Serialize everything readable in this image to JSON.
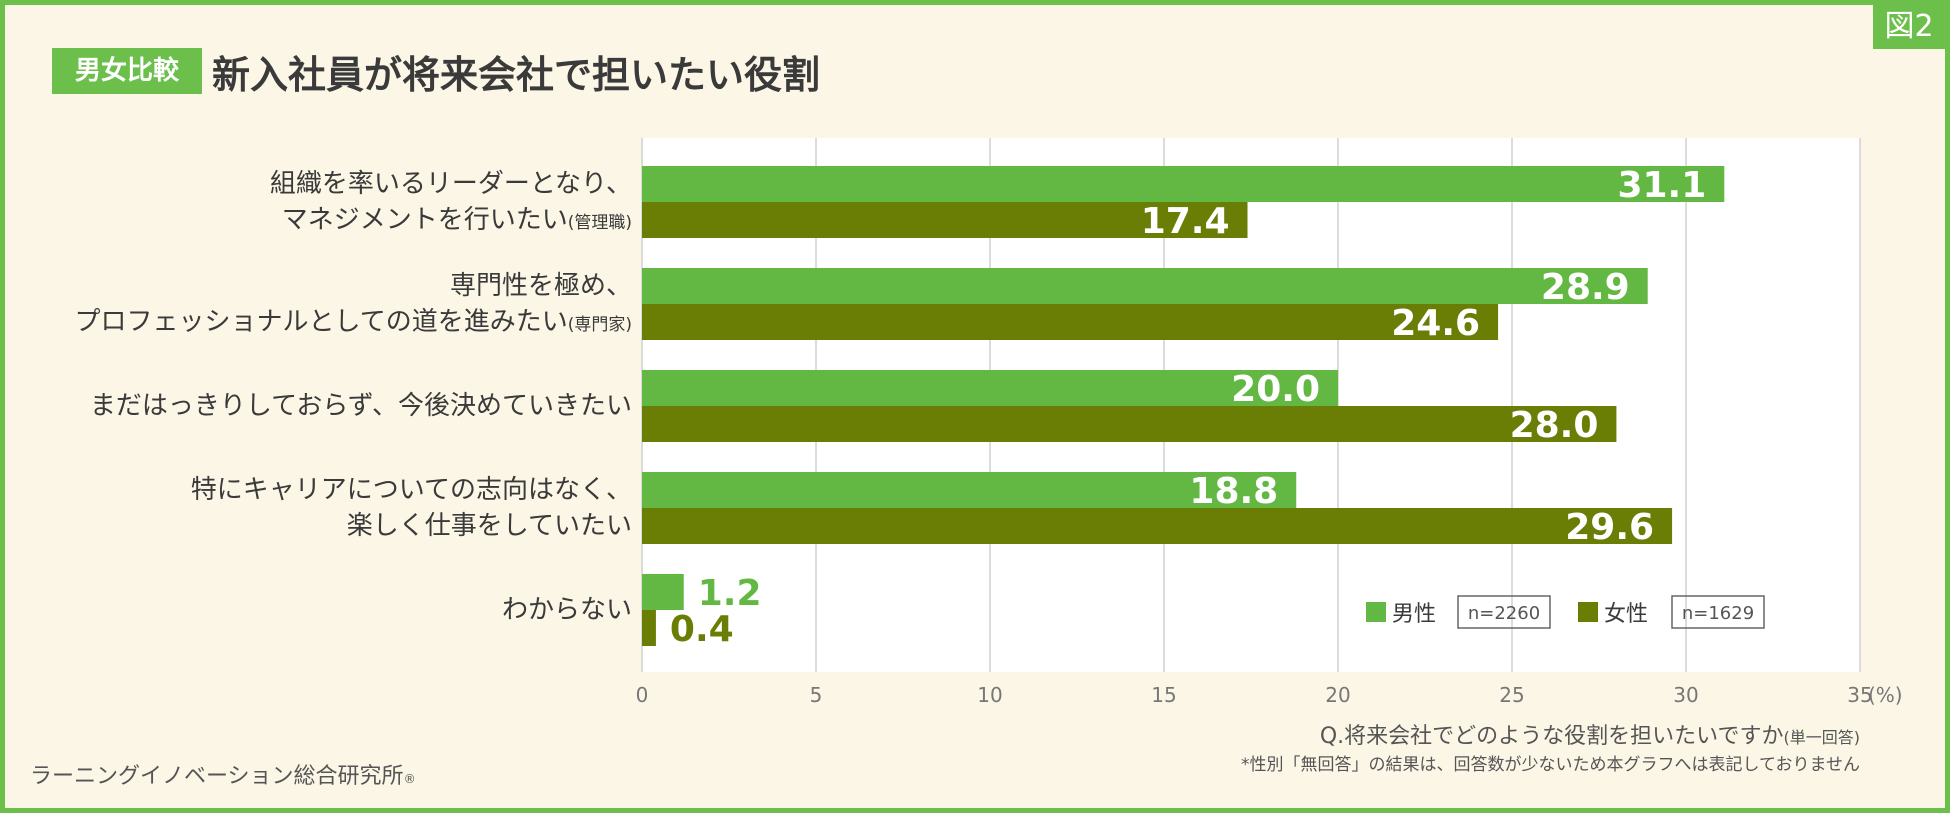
{
  "figure_tag": "図2",
  "title_badge": "男女比較",
  "title": "新入社員が将来会社で担いたい役割",
  "question": "Q.将来会社でどのような役割を担いたいですか",
  "question_note": "(単一回答)",
  "footnote": "*性別「無回答」の結果は、回答数が少ないため本グラフへは表記しておりません",
  "credit": "ラーニングイノベーション総合研究所",
  "credit_mark": "®",
  "categories": [
    {
      "line1": "組織を率いるリーダーとなり、",
      "line2": "マネジメントを行いたい",
      "suffix": "(管理職)"
    },
    {
      "line1": "専門性を極め、",
      "line2": "プロフェッショナルとしての道を進みたい",
      "suffix": "(専門家)"
    },
    {
      "line1": "まだはっきりしておらず、今後決めていきたい",
      "line2": "",
      "suffix": ""
    },
    {
      "line1": "特にキャリアについての志向はなく、",
      "line2": "楽しく仕事をしていたい",
      "suffix": ""
    },
    {
      "line1": "わからない",
      "line2": "",
      "suffix": ""
    }
  ],
  "colors": {
    "male": "#62b843",
    "female": "#6a7d05",
    "grid": "#d0d0d0",
    "axis_text": "#777777"
  },
  "chart_data": {
    "type": "bar",
    "orientation": "horizontal",
    "categories": [
      "組織を率いるリーダーとなり、マネジメントを行いたい(管理職)",
      "専門性を極め、プロフェッショナルとしての道を進みたい(専門家)",
      "まだはっきりしておらず、今後決めていきたい",
      "特にキャリアについての志向はなく、楽しく仕事をしていたい",
      "わからない"
    ],
    "series": [
      {
        "name": "男性",
        "n_label": "n=2260",
        "values": [
          31.1,
          28.9,
          20.0,
          18.8,
          1.2
        ]
      },
      {
        "name": "女性",
        "n_label": "n=1629",
        "values": [
          17.4,
          24.6,
          28.0,
          29.6,
          0.4
        ]
      }
    ],
    "xlim": [
      0,
      35
    ],
    "xticks": [
      0,
      5,
      10,
      15,
      20,
      25,
      30,
      35
    ],
    "x_unit": "(%)",
    "title": "新入社員が将来会社で担いたい役割",
    "legend": "bottom-right"
  }
}
